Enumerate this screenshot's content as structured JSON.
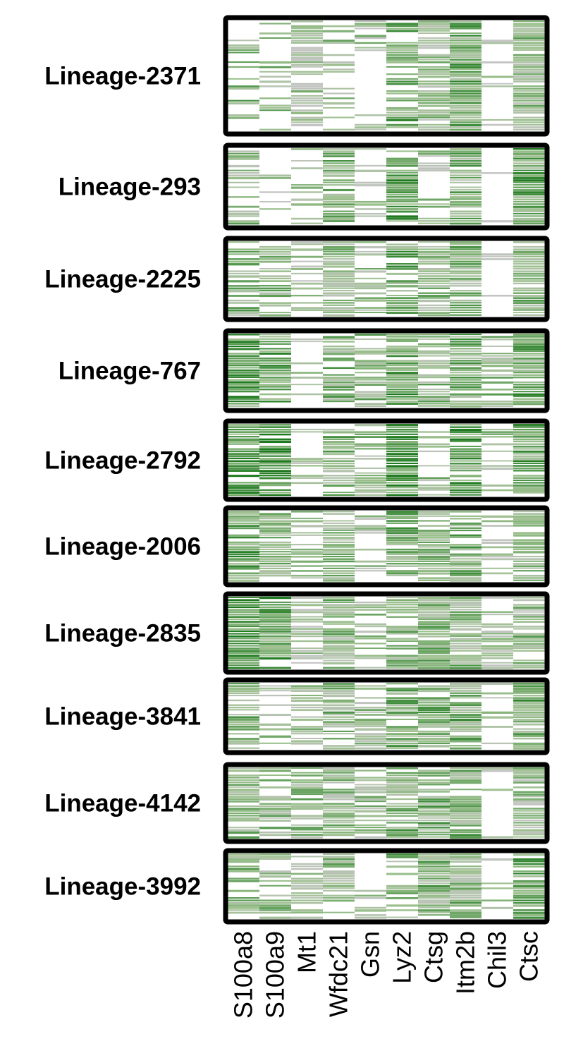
{
  "chart_data": {
    "type": "heatmap",
    "title": "",
    "xlabel": "",
    "ylabel": "",
    "genes": [
      "S100a8",
      "S100a9",
      "Mt1",
      "Wfdc21",
      "Gsn",
      "Lyz2",
      "Ctsg",
      "Itm2b",
      "Chil3",
      "Ctsc"
    ],
    "color_scale": {
      "zero": "#ffffff",
      "low": "#c4c4c4",
      "mid": "#9dc08f",
      "high": "#1f7a1f"
    },
    "frame_color": "#000000",
    "value_range": [
      0,
      1
    ],
    "panels": [
      {
        "lineage": "Lineage-2371",
        "cells": 20,
        "gene_expression_fraction": [
          0.35,
          0.25,
          0.75,
          0.3,
          0.3,
          0.6,
          0.85,
          0.95,
          0.1,
          0.9
        ],
        "gene_mean_level": [
          0.55,
          0.5,
          0.35,
          0.4,
          0.35,
          0.6,
          0.4,
          0.6,
          0.2,
          0.45
        ]
      },
      {
        "lineage": "Lineage-293",
        "cells": 15,
        "gene_expression_fraction": [
          0.55,
          0.2,
          0.25,
          0.8,
          0.35,
          0.9,
          0.45,
          0.85,
          0.05,
          0.95
        ],
        "gene_mean_level": [
          0.45,
          0.3,
          0.3,
          0.55,
          0.35,
          0.8,
          0.35,
          0.55,
          0.1,
          0.65
        ]
      },
      {
        "lineage": "Lineage-2225",
        "cells": 14,
        "gene_expression_fraction": [
          0.75,
          0.6,
          0.3,
          0.85,
          0.45,
          0.75,
          0.8,
          0.9,
          0.15,
          0.8
        ],
        "gene_mean_level": [
          0.5,
          0.45,
          0.3,
          0.45,
          0.4,
          0.6,
          0.45,
          0.5,
          0.3,
          0.5
        ]
      },
      {
        "lineage": "Lineage-767",
        "cells": 12,
        "gene_expression_fraction": [
          0.85,
          0.8,
          0.15,
          0.85,
          0.6,
          0.85,
          0.65,
          0.9,
          0.55,
          0.85
        ],
        "gene_mean_level": [
          0.75,
          0.75,
          0.3,
          0.5,
          0.45,
          0.7,
          0.5,
          0.55,
          0.45,
          0.6
        ]
      },
      {
        "lineage": "Lineage-2792",
        "cells": 18,
        "gene_expression_fraction": [
          0.9,
          0.85,
          0.3,
          0.9,
          0.7,
          0.95,
          0.5,
          0.9,
          0.4,
          0.9
        ],
        "gene_mean_level": [
          0.85,
          0.8,
          0.3,
          0.5,
          0.45,
          0.9,
          0.4,
          0.65,
          0.35,
          0.7
        ]
      },
      {
        "lineage": "Lineage-2006",
        "cells": 18,
        "gene_expression_fraction": [
          0.9,
          0.75,
          0.45,
          0.85,
          0.45,
          0.75,
          0.85,
          0.85,
          0.45,
          0.8
        ],
        "gene_mean_level": [
          0.65,
          0.6,
          0.35,
          0.5,
          0.35,
          0.6,
          0.5,
          0.55,
          0.35,
          0.5
        ]
      },
      {
        "lineage": "Lineage-2835",
        "cells": 18,
        "gene_expression_fraction": [
          0.95,
          0.95,
          0.65,
          0.85,
          0.6,
          0.75,
          0.95,
          0.9,
          0.55,
          0.75
        ],
        "gene_mean_level": [
          0.8,
          0.75,
          0.3,
          0.45,
          0.4,
          0.5,
          0.55,
          0.5,
          0.35,
          0.45
        ]
      },
      {
        "lineage": "Lineage-3841",
        "cells": 16,
        "gene_expression_fraction": [
          0.7,
          0.35,
          0.55,
          0.85,
          0.55,
          0.8,
          0.8,
          0.85,
          0.35,
          0.9
        ],
        "gene_mean_level": [
          0.5,
          0.35,
          0.35,
          0.5,
          0.4,
          0.6,
          0.55,
          0.55,
          0.3,
          0.6
        ]
      },
      {
        "lineage": "Lineage-4142",
        "cells": 14,
        "gene_expression_fraction": [
          0.85,
          0.6,
          0.8,
          0.75,
          0.7,
          0.7,
          0.85,
          0.9,
          0.15,
          0.8
        ],
        "gene_mean_level": [
          0.5,
          0.45,
          0.45,
          0.45,
          0.4,
          0.55,
          0.55,
          0.55,
          0.2,
          0.35
        ]
      },
      {
        "lineage": "Lineage-3992",
        "cells": 16,
        "gene_expression_fraction": [
          0.75,
          0.4,
          0.6,
          0.75,
          0.25,
          0.6,
          0.9,
          0.85,
          0.2,
          0.85
        ],
        "gene_mean_level": [
          0.5,
          0.4,
          0.4,
          0.45,
          0.3,
          0.5,
          0.5,
          0.5,
          0.3,
          0.6
        ]
      }
    ]
  }
}
